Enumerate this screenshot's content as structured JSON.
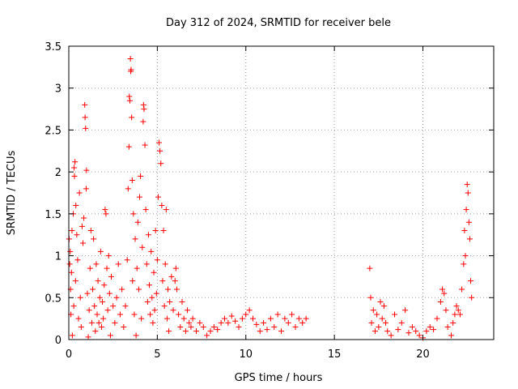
{
  "chart_data": {
    "type": "scatter",
    "title": "Day 312 of 2024, SRMTID for receiver bele",
    "xlabel": "GPS time / hours",
    "ylabel": "SRMTID / TECUs",
    "xlim": [
      0,
      24
    ],
    "ylim": [
      0,
      3.5
    ],
    "xticks": [
      0,
      5,
      10,
      15,
      20
    ],
    "yticks": [
      0,
      0.5,
      1,
      1.5,
      2,
      2.5,
      3,
      3.5
    ],
    "xtick_labels": [
      "0",
      "5",
      "10",
      "15",
      "20"
    ],
    "ytick_labels": [
      "0",
      "0.5",
      "1",
      "1.5",
      "2",
      "2.5",
      "3",
      "3.5"
    ],
    "grid": true,
    "marker": "plus",
    "color": "#ff0000",
    "series": [
      {
        "name": "SRMTID",
        "points": [
          [
            0.02,
            1.2
          ],
          [
            0.05,
            0.9
          ],
          [
            0.08,
            1.05
          ],
          [
            0.1,
            0.6
          ],
          [
            0.12,
            0.3
          ],
          [
            0.15,
            0.8
          ],
          [
            0.18,
            1.3
          ],
          [
            0.2,
            0.05
          ],
          [
            0.25,
            1.5
          ],
          [
            0.28,
            0.4
          ],
          [
            0.3,
            2.05
          ],
          [
            0.32,
            1.95
          ],
          [
            0.35,
            2.12
          ],
          [
            0.38,
            0.7
          ],
          [
            0.4,
            1.6
          ],
          [
            0.45,
            1.25
          ],
          [
            0.5,
            0.95
          ],
          [
            0.55,
            0.25
          ],
          [
            0.6,
            1.75
          ],
          [
            0.65,
            0.5
          ],
          [
            0.7,
            0.15
          ],
          [
            0.75,
            1.35
          ],
          [
            0.8,
            1.15
          ],
          [
            0.85,
            1.45
          ],
          [
            0.9,
            2.8
          ],
          [
            0.92,
            2.65
          ],
          [
            0.95,
            2.52
          ],
          [
            0.98,
            1.8
          ],
          [
            1.0,
            2.02
          ],
          [
            1.05,
            0.55
          ],
          [
            1.1,
            0.03
          ],
          [
            1.15,
            0.35
          ],
          [
            1.2,
            0.85
          ],
          [
            1.25,
            1.3
          ],
          [
            1.3,
            0.2
          ],
          [
            1.35,
            0.6
          ],
          [
            1.4,
            1.2
          ],
          [
            1.45,
            0.4
          ],
          [
            1.5,
            0.1
          ],
          [
            1.55,
            0.9
          ],
          [
            1.6,
            0.3
          ],
          [
            1.65,
            0.7
          ],
          [
            1.7,
            0.2
          ],
          [
            1.75,
            0.5
          ],
          [
            1.8,
            1.05
          ],
          [
            1.85,
            0.15
          ],
          [
            1.9,
            0.45
          ],
          [
            1.95,
            0.25
          ],
          [
            2.0,
            0.65
          ],
          [
            2.05,
            1.55
          ],
          [
            2.1,
            1.5
          ],
          [
            2.15,
            0.85
          ],
          [
            2.2,
            0.35
          ],
          [
            2.25,
            1.0
          ],
          [
            2.3,
            0.55
          ],
          [
            2.35,
            0.05
          ],
          [
            2.4,
            0.75
          ],
          [
            2.5,
            0.4
          ],
          [
            2.6,
            0.2
          ],
          [
            2.7,
            0.5
          ],
          [
            2.8,
            0.9
          ],
          [
            2.9,
            0.3
          ],
          [
            3.0,
            0.6
          ],
          [
            3.1,
            0.15
          ],
          [
            3.2,
            0.4
          ],
          [
            3.3,
            0.95
          ],
          [
            3.35,
            1.8
          ],
          [
            3.4,
            2.3
          ],
          [
            3.42,
            2.9
          ],
          [
            3.45,
            2.85
          ],
          [
            3.48,
            3.35
          ],
          [
            3.5,
            3.2
          ],
          [
            3.52,
            3.22
          ],
          [
            3.55,
            2.65
          ],
          [
            3.58,
            1.9
          ],
          [
            3.6,
            0.7
          ],
          [
            3.65,
            1.5
          ],
          [
            3.7,
            0.3
          ],
          [
            3.75,
            1.2
          ],
          [
            3.8,
            0.05
          ],
          [
            3.85,
            0.85
          ],
          [
            3.9,
            1.4
          ],
          [
            3.95,
            0.6
          ],
          [
            4.0,
            1.7
          ],
          [
            4.05,
            1.95
          ],
          [
            4.1,
            0.25
          ],
          [
            4.15,
            1.1
          ],
          [
            4.2,
            2.6
          ],
          [
            4.22,
            2.8
          ],
          [
            4.25,
            2.75
          ],
          [
            4.3,
            2.32
          ],
          [
            4.35,
            1.55
          ],
          [
            4.4,
            0.9
          ],
          [
            4.45,
            0.45
          ],
          [
            4.5,
            1.25
          ],
          [
            4.55,
            0.65
          ],
          [
            4.6,
            0.3
          ],
          [
            4.65,
            1.05
          ],
          [
            4.7,
            0.5
          ],
          [
            4.75,
            0.2
          ],
          [
            4.8,
            0.8
          ],
          [
            4.85,
            0.35
          ],
          [
            4.9,
            1.3
          ],
          [
            4.95,
            0.55
          ],
          [
            5.0,
            0.95
          ],
          [
            5.05,
            1.7
          ],
          [
            5.1,
            2.35
          ],
          [
            5.15,
            2.25
          ],
          [
            5.2,
            2.1
          ],
          [
            5.25,
            1.6
          ],
          [
            5.3,
            0.7
          ],
          [
            5.35,
            1.3
          ],
          [
            5.4,
            0.4
          ],
          [
            5.45,
            0.9
          ],
          [
            5.5,
            1.55
          ],
          [
            5.55,
            0.25
          ],
          [
            5.6,
            0.6
          ],
          [
            5.65,
            0.1
          ],
          [
            5.7,
            0.45
          ],
          [
            5.8,
            0.75
          ],
          [
            5.9,
            0.35
          ],
          [
            6.0,
            0.7
          ],
          [
            6.05,
            0.85
          ],
          [
            6.1,
            0.6
          ],
          [
            6.2,
            0.3
          ],
          [
            6.3,
            0.15
          ],
          [
            6.4,
            0.45
          ],
          [
            6.5,
            0.25
          ],
          [
            6.6,
            0.1
          ],
          [
            6.7,
            0.35
          ],
          [
            6.8,
            0.2
          ],
          [
            6.9,
            0.15
          ],
          [
            7.0,
            0.25
          ],
          [
            7.2,
            0.1
          ],
          [
            7.4,
            0.2
          ],
          [
            7.6,
            0.15
          ],
          [
            7.8,
            0.05
          ],
          [
            8.0,
            0.1
          ],
          [
            8.2,
            0.15
          ],
          [
            8.4,
            0.12
          ],
          [
            8.6,
            0.2
          ],
          [
            8.8,
            0.25
          ],
          [
            9.0,
            0.2
          ],
          [
            9.2,
            0.28
          ],
          [
            9.4,
            0.22
          ],
          [
            9.6,
            0.15
          ],
          [
            9.8,
            0.25
          ],
          [
            10.0,
            0.3
          ],
          [
            10.2,
            0.35
          ],
          [
            10.4,
            0.25
          ],
          [
            10.6,
            0.18
          ],
          [
            10.8,
            0.1
          ],
          [
            11.0,
            0.2
          ],
          [
            11.2,
            0.12
          ],
          [
            11.4,
            0.25
          ],
          [
            11.6,
            0.15
          ],
          [
            11.8,
            0.3
          ],
          [
            12.0,
            0.1
          ],
          [
            12.2,
            0.25
          ],
          [
            12.4,
            0.2
          ],
          [
            12.6,
            0.3
          ],
          [
            12.8,
            0.15
          ],
          [
            13.0,
            0.25
          ],
          [
            13.2,
            0.2
          ],
          [
            13.4,
            0.25
          ],
          [
            17.0,
            0.85
          ],
          [
            17.05,
            0.5
          ],
          [
            17.1,
            0.2
          ],
          [
            17.2,
            0.35
          ],
          [
            17.3,
            0.1
          ],
          [
            17.4,
            0.3
          ],
          [
            17.5,
            0.15
          ],
          [
            17.6,
            0.45
          ],
          [
            17.7,
            0.25
          ],
          [
            17.8,
            0.4
          ],
          [
            17.9,
            0.2
          ],
          [
            18.0,
            0.1
          ],
          [
            18.2,
            0.05
          ],
          [
            18.4,
            0.3
          ],
          [
            18.6,
            0.12
          ],
          [
            18.8,
            0.2
          ],
          [
            19.0,
            0.35
          ],
          [
            19.2,
            0.08
          ],
          [
            19.4,
            0.15
          ],
          [
            19.6,
            0.1
          ],
          [
            19.8,
            0.05
          ],
          [
            20.0,
            0.02
          ],
          [
            20.2,
            0.1
          ],
          [
            20.4,
            0.15
          ],
          [
            20.6,
            0.12
          ],
          [
            20.8,
            0.25
          ],
          [
            21.0,
            0.45
          ],
          [
            21.1,
            0.6
          ],
          [
            21.2,
            0.55
          ],
          [
            21.3,
            0.35
          ],
          [
            21.4,
            0.15
          ],
          [
            21.6,
            0.05
          ],
          [
            21.7,
            0.2
          ],
          [
            21.8,
            0.3
          ],
          [
            21.9,
            0.4
          ],
          [
            22.0,
            0.35
          ],
          [
            22.1,
            0.3
          ],
          [
            22.2,
            0.6
          ],
          [
            22.3,
            0.9
          ],
          [
            22.35,
            1.3
          ],
          [
            22.4,
            1.0
          ],
          [
            22.45,
            1.55
          ],
          [
            22.5,
            1.85
          ],
          [
            22.55,
            1.75
          ],
          [
            22.6,
            1.4
          ],
          [
            22.65,
            1.2
          ],
          [
            22.7,
            0.7
          ],
          [
            22.75,
            0.5
          ]
        ]
      }
    ]
  }
}
